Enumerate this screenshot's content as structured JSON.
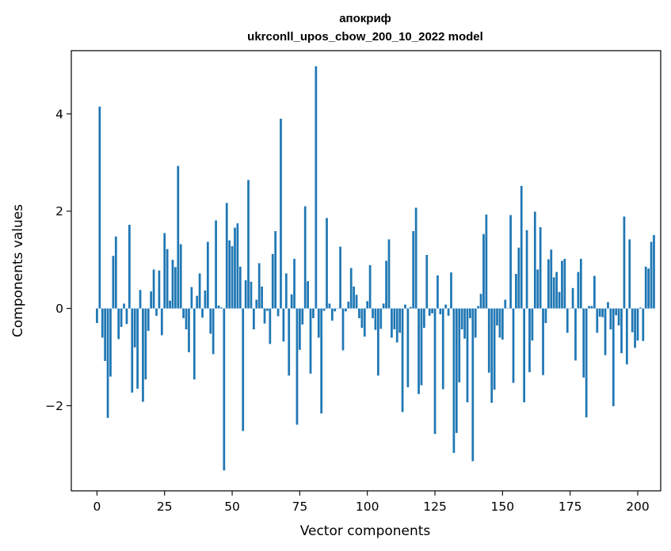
{
  "chart_data": {
    "type": "bar",
    "title": "апокриф",
    "subtitle": "ukrconll_upos_cbow_200_10_2022 model",
    "xlabel": "Vector components",
    "ylabel": "Components values",
    "xlim": [
      -9.5,
      208.5
    ],
    "ylim": [
      -3.75,
      5.3
    ],
    "xticks": [
      0,
      25,
      50,
      75,
      100,
      125,
      150,
      175,
      200
    ],
    "yticks": [
      -2,
      0,
      2,
      4
    ],
    "ytick_labels": [
      "−2",
      "0",
      "2",
      "4"
    ],
    "grid": false,
    "bar_color": "#1f77b4",
    "values": [
      -0.3,
      4.15,
      -0.6,
      -1.08,
      -2.25,
      -1.4,
      1.08,
      1.48,
      -0.63,
      -0.38,
      0.1,
      -0.32,
      1.72,
      -1.73,
      -0.8,
      -1.65,
      0.38,
      -1.92,
      -1.46,
      -0.46,
      0.35,
      0.8,
      -0.15,
      0.78,
      -0.55,
      1.55,
      1.22,
      0.16,
      1.0,
      0.85,
      2.93,
      1.32,
      -0.2,
      -0.43,
      -0.9,
      0.44,
      -1.46,
      0.26,
      0.72,
      -0.19,
      0.37,
      1.37,
      -0.52,
      -0.94,
      1.81,
      0.06,
      0.02,
      -3.33,
      2.17,
      1.4,
      1.28,
      1.66,
      1.75,
      0.86,
      -2.52,
      0.58,
      2.64,
      0.55,
      -0.43,
      0.18,
      0.93,
      0.45,
      -0.31,
      -0.05,
      -0.73,
      1.12,
      1.59,
      -0.16,
      3.9,
      -0.68,
      0.72,
      -1.38,
      0.29,
      1.02,
      -2.39,
      -0.85,
      -0.33,
      2.1,
      0.56,
      -1.34,
      -0.2,
      4.98,
      -0.6,
      -2.16,
      -0.05,
      1.86,
      0.1,
      -0.25,
      -0.06,
      0.0,
      1.27,
      -0.86,
      -0.06,
      0.14,
      0.83,
      0.45,
      0.28,
      -0.2,
      -0.4,
      -0.58,
      0.15,
      0.89,
      -0.2,
      -0.44,
      -1.38,
      -0.42,
      0.1,
      0.98,
      1.42,
      -0.6,
      -0.43,
      -0.7,
      -0.5,
      -2.13,
      0.08,
      -1.62,
      0.03,
      1.59,
      2.07,
      -1.76,
      -1.58,
      -0.4,
      1.1,
      -0.15,
      -0.1,
      -2.58,
      0.68,
      -0.12,
      -1.66,
      0.08,
      -0.15,
      0.74,
      -2.97,
      -2.56,
      -1.52,
      -0.43,
      -0.62,
      -1.93,
      -0.2,
      -3.14,
      -0.6,
      0.05,
      0.3,
      1.53,
      1.93,
      -1.32,
      -1.94,
      -1.67,
      -0.35,
      -0.6,
      -0.64,
      0.18,
      0.0,
      1.92,
      -1.53,
      0.71,
      1.25,
      2.52,
      -1.93,
      1.61,
      -1.31,
      -0.66,
      1.99,
      0.8,
      1.67,
      -1.37,
      -0.3,
      1.01,
      1.21,
      0.64,
      0.75,
      0.34,
      0.98,
      1.02,
      -0.5,
      0.0,
      0.42,
      -1.07,
      0.75,
      1.02,
      -1.42,
      -2.24,
      0.05,
      0.05,
      0.67,
      -0.5,
      -0.17,
      -0.18,
      -0.96,
      0.13,
      -0.43,
      -2.01,
      -0.14,
      -0.35,
      -0.92,
      1.89,
      -1.15,
      1.42,
      -0.49,
      -0.81,
      -0.66,
      0.02,
      -0.67,
      0.86,
      0.82,
      1.37,
      1.51
    ]
  }
}
